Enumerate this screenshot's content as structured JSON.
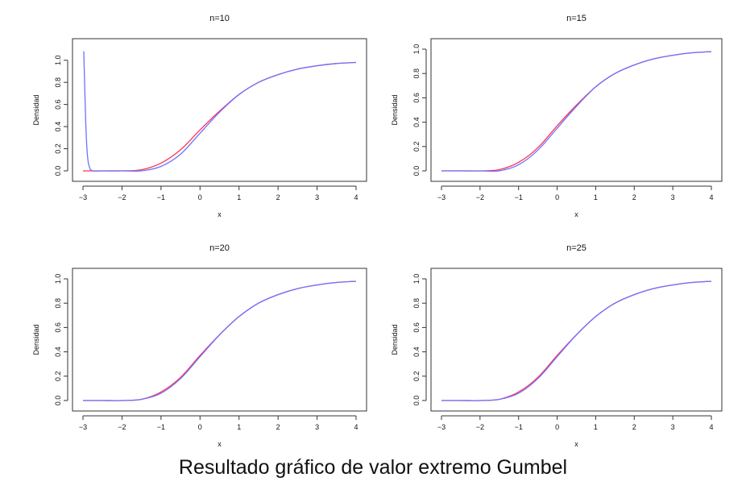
{
  "caption": "Resultado gráfico de valor extremo Gumbel",
  "colors": {
    "empirical_series": "#7070ff",
    "theoretical_series": "#ff3355",
    "axis": "#333333",
    "text": "#111111"
  },
  "chart_data": [
    {
      "type": "line",
      "title": "n=10",
      "xlabel": "x",
      "ylabel": "Densidad",
      "xlim": [
        -3,
        4
      ],
      "ylim": [
        0,
        1.1
      ],
      "xticks": [
        "−3",
        "−2",
        "−1",
        "0",
        "1",
        "2",
        "3",
        "4"
      ],
      "yticks": [
        "0.0",
        "0.2",
        "0.4",
        "0.6",
        "0.8",
        "1.0"
      ],
      "grid": false,
      "series": [
        {
          "color": "#ff3355",
          "x": [
            -3,
            -2.5,
            -2,
            -1.5,
            -1,
            -0.5,
            0,
            0.5,
            1,
            1.5,
            2,
            2.5,
            3,
            3.5,
            4
          ],
          "y": [
            0.0,
            0.0,
            0.0,
            0.01,
            0.07,
            0.19,
            0.37,
            0.54,
            0.69,
            0.8,
            0.87,
            0.92,
            0.95,
            0.97,
            0.98
          ]
        },
        {
          "color": "#7070ff",
          "x": [
            -2.98,
            -2.95,
            -2.92,
            -2.88,
            -2.83,
            -2.75,
            -2.5,
            -2,
            -1.5,
            -1,
            -0.5,
            0,
            0.5,
            1,
            1.5,
            2,
            2.5,
            3,
            3.5,
            4
          ],
          "y": [
            1.08,
            0.7,
            0.35,
            0.12,
            0.03,
            0.0,
            0.0,
            0.0,
            0.0,
            0.04,
            0.15,
            0.34,
            0.53,
            0.69,
            0.8,
            0.87,
            0.92,
            0.95,
            0.97,
            0.98
          ]
        }
      ]
    },
    {
      "type": "line",
      "title": "n=15",
      "xlabel": "x",
      "ylabel": "Densidad",
      "xlim": [
        -3,
        4
      ],
      "ylim": [
        0,
        1.0
      ],
      "xticks": [
        "−3",
        "−2",
        "−1",
        "0",
        "1",
        "2",
        "3",
        "4"
      ],
      "yticks": [
        "0.0",
        "0.2",
        "0.4",
        "0.6",
        "0.8",
        "1.0"
      ],
      "grid": false,
      "series": [
        {
          "color": "#ff3355",
          "x": [
            -3,
            -2.5,
            -2,
            -1.5,
            -1,
            -0.5,
            0,
            0.5,
            1,
            1.5,
            2,
            2.5,
            3,
            3.5,
            4
          ],
          "y": [
            0.0,
            0.0,
            0.0,
            0.01,
            0.07,
            0.19,
            0.37,
            0.54,
            0.69,
            0.8,
            0.87,
            0.92,
            0.95,
            0.97,
            0.98
          ]
        },
        {
          "color": "#7070ff",
          "x": [
            -3,
            -2.5,
            -2,
            -1.5,
            -1,
            -0.5,
            0,
            0.5,
            1,
            1.5,
            2,
            2.5,
            3,
            3.5,
            4
          ],
          "y": [
            0.0,
            0.0,
            0.0,
            0.0,
            0.05,
            0.17,
            0.35,
            0.53,
            0.69,
            0.8,
            0.87,
            0.92,
            0.95,
            0.97,
            0.98
          ]
        }
      ]
    },
    {
      "type": "line",
      "title": "n=20",
      "xlabel": "x",
      "ylabel": "Densidad",
      "xlim": [
        -3,
        4
      ],
      "ylim": [
        0,
        1.0
      ],
      "xticks": [
        "−3",
        "−2",
        "−1",
        "0",
        "1",
        "2",
        "3",
        "4"
      ],
      "yticks": [
        "0.0",
        "0.2",
        "0.4",
        "0.6",
        "0.8",
        "1.0"
      ],
      "grid": false,
      "series": [
        {
          "color": "#ff3355",
          "x": [
            -3,
            -2.5,
            -2,
            -1.5,
            -1,
            -0.5,
            0,
            0.5,
            1,
            1.5,
            2,
            2.5,
            3,
            3.5,
            4
          ],
          "y": [
            0.0,
            0.0,
            0.0,
            0.01,
            0.07,
            0.19,
            0.37,
            0.54,
            0.69,
            0.8,
            0.87,
            0.92,
            0.95,
            0.97,
            0.98
          ]
        },
        {
          "color": "#7070ff",
          "x": [
            -3,
            -2.5,
            -2,
            -1.5,
            -1,
            -0.5,
            0,
            0.5,
            1,
            1.5,
            2,
            2.5,
            3,
            3.5,
            4
          ],
          "y": [
            0.0,
            0.0,
            0.0,
            0.01,
            0.06,
            0.18,
            0.36,
            0.54,
            0.69,
            0.8,
            0.87,
            0.92,
            0.95,
            0.97,
            0.98
          ]
        }
      ]
    },
    {
      "type": "line",
      "title": "n=25",
      "xlabel": "x",
      "ylabel": "Densidad",
      "xlim": [
        -3,
        4
      ],
      "ylim": [
        0,
        1.0
      ],
      "xticks": [
        "−3",
        "−2",
        "−1",
        "0",
        "1",
        "2",
        "3",
        "4"
      ],
      "yticks": [
        "0.0",
        "0.2",
        "0.4",
        "0.6",
        "0.8",
        "1.0"
      ],
      "grid": false,
      "series": [
        {
          "color": "#ff3355",
          "x": [
            -3,
            -2.5,
            -2,
            -1.5,
            -1,
            -0.5,
            0,
            0.5,
            1,
            1.5,
            2,
            2.5,
            3,
            3.5,
            4
          ],
          "y": [
            0.0,
            0.0,
            0.0,
            0.01,
            0.07,
            0.19,
            0.37,
            0.54,
            0.69,
            0.8,
            0.87,
            0.92,
            0.95,
            0.97,
            0.98
          ]
        },
        {
          "color": "#7070ff",
          "x": [
            -3,
            -2.5,
            -2,
            -1.5,
            -1,
            -0.5,
            0,
            0.5,
            1,
            1.5,
            2,
            2.5,
            3,
            3.5,
            4
          ],
          "y": [
            0.0,
            0.0,
            0.0,
            0.01,
            0.06,
            0.18,
            0.36,
            0.54,
            0.69,
            0.8,
            0.87,
            0.92,
            0.95,
            0.97,
            0.98
          ]
        }
      ]
    }
  ]
}
